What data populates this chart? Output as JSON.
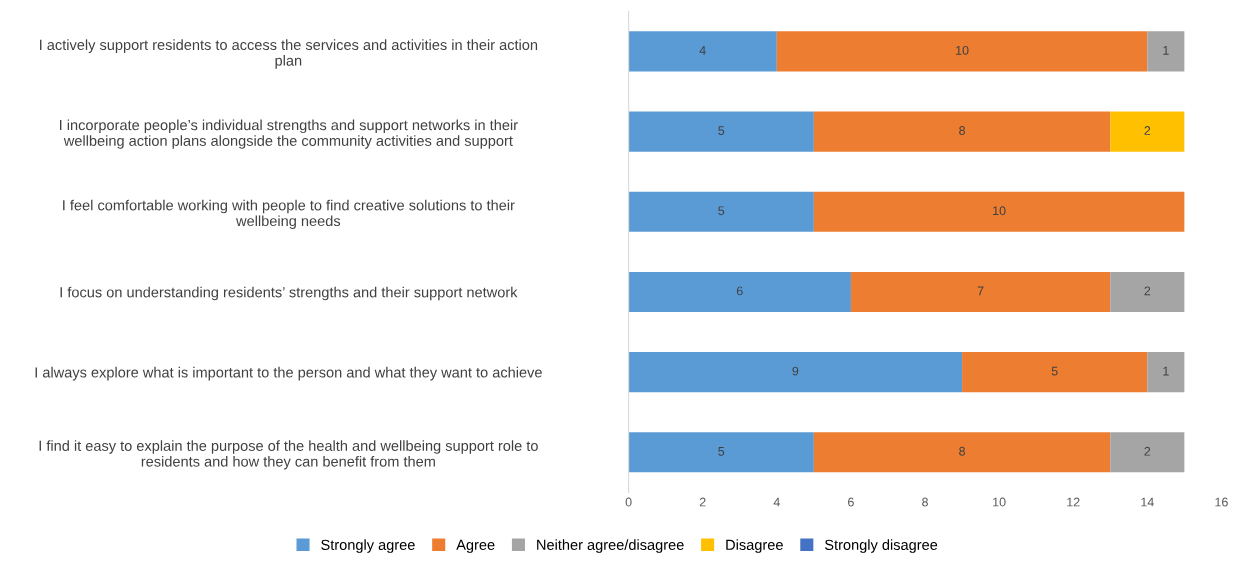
{
  "chart_data": {
    "type": "bar",
    "orientation": "horizontal",
    "stacked": true,
    "categories": [
      "I actively support residents to access the services and activities in their action\nplan",
      "I incorporate people’s individual strengths and support networks in their\nwellbeing action plans alongside the community activities and support",
      "I feel comfortable working with people to find creative solutions to their\nwellbeing needs",
      "I focus on understanding residents’ strengths and their support network",
      "I always explore what is important to the person and what they want to achieve",
      "I find it easy to explain the purpose of the health and wellbeing support role to\nresidents and how they can benefit from them"
    ],
    "series": [
      {
        "name": "Strongly agree",
        "color": "#5b9bd5",
        "values": [
          4,
          5,
          5,
          6,
          9,
          5
        ]
      },
      {
        "name": "Agree",
        "color": "#ed7d31",
        "values": [
          10,
          8,
          10,
          7,
          5,
          8
        ]
      },
      {
        "name": "Neither agree/disagree",
        "color": "#a5a5a5",
        "values": [
          1,
          null,
          null,
          2,
          1,
          2
        ]
      },
      {
        "name": "Disagree",
        "color": "#ffc000",
        "values": [
          null,
          2,
          null,
          null,
          null,
          null
        ]
      },
      {
        "name": "Strongly disagree",
        "color": "#4472c4",
        "values": [
          null,
          null,
          null,
          null,
          null,
          null
        ]
      }
    ],
    "xlim": [
      0,
      16
    ],
    "xticks": [
      0,
      2,
      4,
      6,
      8,
      10,
      12,
      14,
      16
    ],
    "data_labels": true,
    "grid": false,
    "legend": "bottom"
  }
}
